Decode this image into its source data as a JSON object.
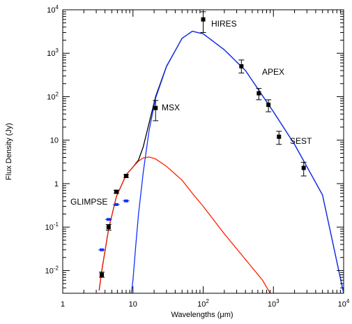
{
  "chart_data": {
    "type": "scatter",
    "xlabel": "Wavelengths (μm)",
    "ylabel": "Flux Density (Jy)",
    "x_scale": "log",
    "y_scale": "log",
    "xlim": [
      1,
      10000
    ],
    "ylim": [
      0.003,
      10000
    ],
    "grid": false,
    "x_ticks": [
      {
        "value": 1,
        "base": "1",
        "exp": ""
      },
      {
        "value": 10,
        "base": "10",
        "exp": ""
      },
      {
        "value": 100,
        "base": "10",
        "exp": "2"
      },
      {
        "value": 1000,
        "base": "10",
        "exp": "3"
      },
      {
        "value": 10000,
        "base": "10",
        "exp": "4"
      }
    ],
    "y_ticks": [
      {
        "value": 0.01,
        "base": "10",
        "exp": "-2"
      },
      {
        "value": 0.1,
        "base": "10",
        "exp": "-1"
      },
      {
        "value": 1,
        "base": "1",
        "exp": ""
      },
      {
        "value": 10,
        "base": "10",
        "exp": ""
      },
      {
        "value": 100,
        "base": "10",
        "exp": "2"
      },
      {
        "value": 1000,
        "base": "10",
        "exp": "3"
      },
      {
        "value": 10000,
        "base": "10",
        "exp": "4"
      }
    ],
    "annotations": [
      "HIRES",
      "APEX",
      "MSX",
      "SEST",
      "GLIMPSE"
    ],
    "colors": {
      "data_black": "#000000",
      "data_blue": "#1030ff",
      "curve_total": "#000000",
      "curve_cold": "#1030ff",
      "curve_warm": "#ff2000"
    },
    "points_black": [
      {
        "x": 3.6,
        "y": 0.008,
        "ylo": 0.007,
        "yhi": 0.0092
      },
      {
        "x": 4.5,
        "y": 0.1,
        "ylo": 0.085,
        "yhi": 0.115
      },
      {
        "x": 5.8,
        "y": 0.65,
        "ylo": 0.6,
        "yhi": 0.7
      },
      {
        "x": 8.0,
        "y": 1.5,
        "ylo": 1.4,
        "yhi": 1.6
      },
      {
        "x": 21,
        "y": 55,
        "ylo": 28,
        "yhi": 82
      },
      {
        "x": 100,
        "y": 6000,
        "ylo": 3000,
        "yhi": 9000
      },
      {
        "x": 350,
        "y": 500,
        "ylo": 350,
        "yhi": 700
      },
      {
        "x": 620,
        "y": 120,
        "ylo": 85,
        "yhi": 155
      },
      {
        "x": 850,
        "y": 65,
        "ylo": 45,
        "yhi": 85
      },
      {
        "x": 1200,
        "y": 12,
        "ylo": 8,
        "yhi": 16
      },
      {
        "x": 2700,
        "y": 2.3,
        "ylo": 1.5,
        "yhi": 3.1
      }
    ],
    "points_blue": [
      {
        "x": 3.6,
        "y": 0.03
      },
      {
        "x": 4.5,
        "y": 0.15
      },
      {
        "x": 5.8,
        "y": 0.33
      },
      {
        "x": 8.0,
        "y": 0.4
      }
    ],
    "series": [
      {
        "color": "#000000",
        "x": [
          3.3,
          3.6,
          4.5,
          5.8,
          8.0,
          10,
          12,
          14,
          17,
          21,
          30,
          50,
          70,
          100,
          200,
          400,
          1000,
          2000,
          5000,
          10000
        ],
        "y": [
          0.0035,
          0.01,
          0.09,
          0.5,
          1.6,
          2.4,
          3.5,
          7,
          25,
          100,
          500,
          2200,
          3200,
          2800,
          1200,
          400,
          45,
          8,
          0.55,
          0.003
        ]
      },
      {
        "color": "#1030ff",
        "x": [
          9.5,
          10,
          11,
          12,
          14,
          17,
          21,
          30,
          50,
          70,
          100,
          200,
          400,
          1000,
          2000,
          5000,
          10000
        ],
        "y": [
          0.003,
          0.006,
          0.04,
          0.2,
          1.8,
          17,
          92,
          490,
          2200,
          3200,
          2800,
          1200,
          400,
          45,
          8,
          0.55,
          0.003
        ]
      },
      {
        "color": "#ff2000",
        "x": [
          3.3,
          3.6,
          4.5,
          5.8,
          8.0,
          10,
          12,
          14,
          17,
          21,
          30,
          50,
          70,
          100,
          200,
          400,
          700,
          900
        ],
        "y": [
          0.0035,
          0.01,
          0.09,
          0.5,
          1.6,
          2.4,
          3.3,
          3.9,
          4.1,
          3.7,
          2.5,
          1.2,
          0.6,
          0.3,
          0.07,
          0.018,
          0.006,
          0.003
        ]
      }
    ]
  }
}
